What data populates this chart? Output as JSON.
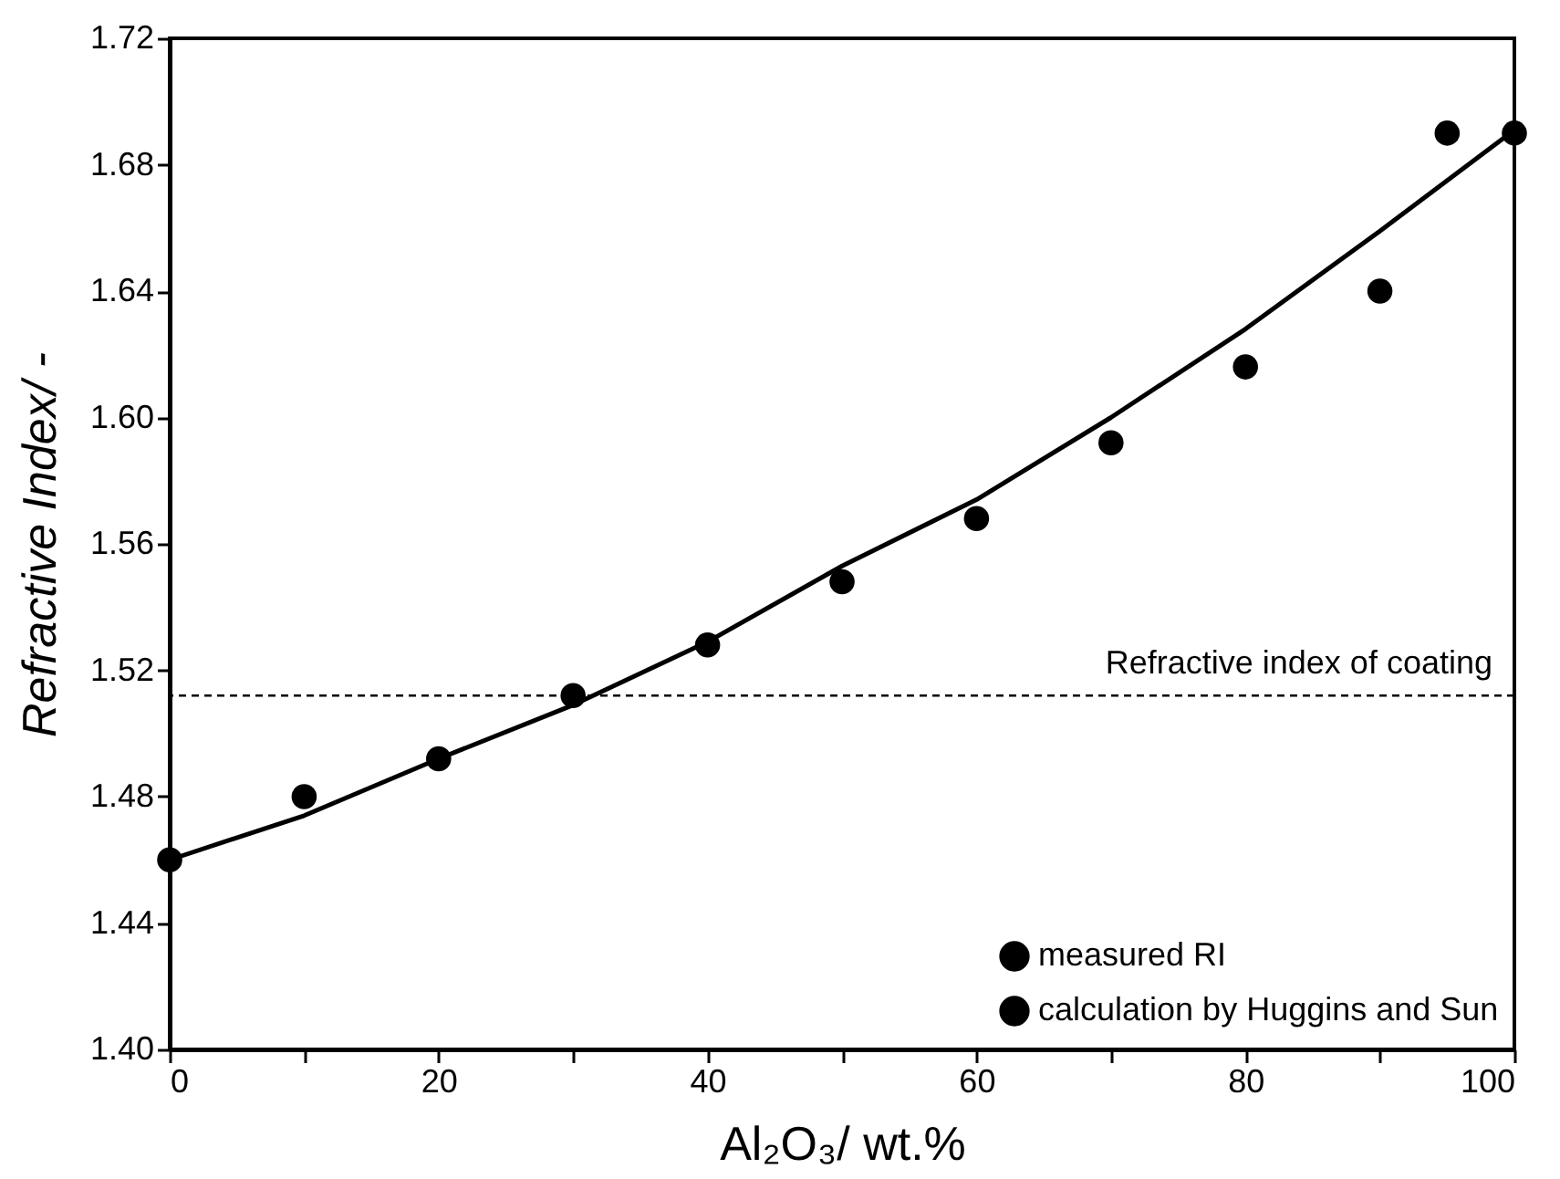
{
  "chart_data": {
    "type": "scatter",
    "xlabel": "Al₂O₃/ wt.%",
    "ylabel": "Refractive Index/ -",
    "xlim": [
      0,
      100
    ],
    "xticks": [
      0,
      {
        "value": 10,
        "label": null
      },
      20,
      {
        "value": 30,
        "label": null
      },
      40,
      {
        "value": 50,
        "label": null
      },
      60,
      {
        "value": 70,
        "label": null
      },
      80,
      {
        "value": 90,
        "label": null
      },
      100
    ],
    "ylim": [
      1.4,
      1.72
    ],
    "yticks": [
      {
        "value": 1.4,
        "label": "1.40"
      },
      1.44,
      1.48,
      1.52,
      1.56,
      {
        "value": 1.6,
        "label": "1.60"
      },
      1.64,
      1.68,
      1.72
    ],
    "x": [
      0,
      10,
      20,
      30,
      40,
      50,
      60,
      70,
      80,
      90,
      95,
      100
    ],
    "series": [
      {
        "name": "measured RI",
        "color": "#000000",
        "marker": "circle",
        "values": [
          1.46,
          1.48,
          1.492,
          1.512,
          1.528,
          1.548,
          1.568,
          1.592,
          1.616,
          1.64,
          1.69,
          1.69
        ]
      },
      {
        "name": "calculation by Huggins and Sun",
        "type": "line",
        "color": "#000000",
        "line_style": "solid",
        "marker": "none",
        "x": [
          0,
          10,
          20,
          30,
          40,
          50,
          60,
          70,
          80,
          90,
          100
        ],
        "values": [
          1.46,
          1.474,
          1.492,
          1.509,
          1.529,
          1.553,
          1.574,
          1.6,
          1.628,
          1.659,
          1.691
        ]
      }
    ],
    "ref_lines": [
      {
        "axis": "y",
        "value": 1.512,
        "label": "Refractive index of coating",
        "color": "#000000",
        "line_style": "dashed"
      }
    ],
    "legend": "bottom right",
    "grid": false
  }
}
